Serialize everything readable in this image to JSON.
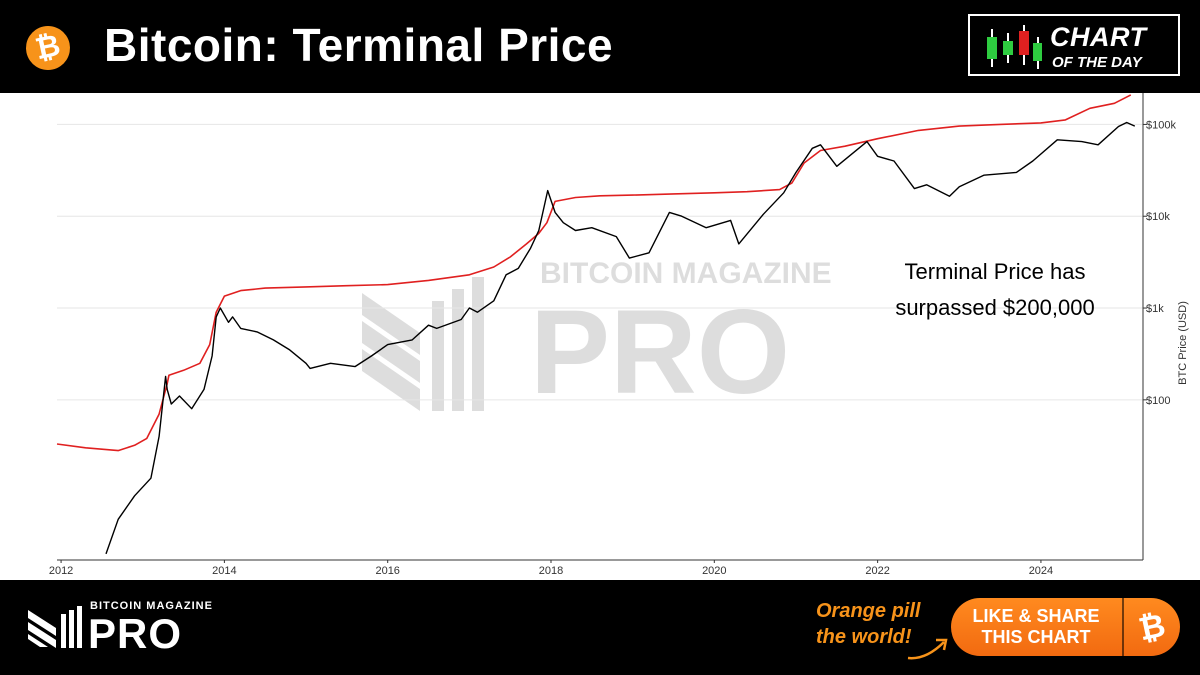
{
  "header": {
    "title": "Bitcoin: Terminal Price",
    "coin_icon": "bitcoin-coin-icon",
    "badge": {
      "line1": "CHART",
      "line2": "OF THE DAY",
      "icon": "candlestick-icon"
    }
  },
  "chart_data": {
    "type": "line",
    "title": "",
    "xlabel": "",
    "ylabel": "BTC Price (USD)",
    "yscale": "log",
    "xlim": [
      2011.95,
      2025.25
    ],
    "ylim": [
      1.8,
      220000
    ],
    "x_ticks": [
      {
        "value": 2012,
        "label": "2012"
      },
      {
        "value": 2014,
        "label": "2014"
      },
      {
        "value": 2016,
        "label": "2016"
      },
      {
        "value": 2018,
        "label": "2018"
      },
      {
        "value": 2020,
        "label": "2020"
      },
      {
        "value": 2022,
        "label": "2022"
      },
      {
        "value": 2024,
        "label": "2024"
      }
    ],
    "y_ticks": [
      {
        "value": 100,
        "label": "$100"
      },
      {
        "value": 1000,
        "label": "$1k"
      },
      {
        "value": 10000,
        "label": "$10k"
      },
      {
        "value": 100000,
        "label": "$100k"
      }
    ],
    "grid": true,
    "annotation": {
      "lines": [
        "Terminal Price has",
        "surpassed $200,000"
      ]
    },
    "watermark": {
      "line1": "BITCOIN MAGAZINE",
      "line2": "PRO"
    },
    "series": [
      {
        "color": "#e02020",
        "x": [
          2011.95,
          2012.3,
          2012.7,
          2012.9,
          2013.05,
          2013.2,
          2013.3,
          2013.32,
          2013.5,
          2013.7,
          2013.82,
          2013.9,
          2014.0,
          2014.2,
          2014.5,
          2015.0,
          2015.5,
          2016.0,
          2016.5,
          2017.0,
          2017.3,
          2017.5,
          2017.7,
          2017.85,
          2017.95,
          2018.05,
          2018.3,
          2018.6,
          2019.0,
          2019.5,
          2020.0,
          2020.4,
          2020.8,
          2020.95,
          2021.1,
          2021.3,
          2021.6,
          2022.0,
          2022.5,
          2023.0,
          2023.5,
          2024.0,
          2024.3,
          2024.6,
          2024.9,
          2025.1
        ],
        "y": [
          33,
          30,
          28,
          32,
          38,
          70,
          150,
          185,
          210,
          250,
          400,
          900,
          1350,
          1550,
          1650,
          1700,
          1750,
          1800,
          2000,
          2300,
          2800,
          3600,
          5000,
          6500,
          8500,
          14500,
          16000,
          16700,
          17000,
          17500,
          18000,
          18500,
          19500,
          23000,
          38000,
          52000,
          58000,
          70000,
          86000,
          96000,
          100000,
          104000,
          112000,
          150000,
          170000,
          210000
        ]
      },
      {
        "color": "#000000",
        "x": [
          2012.55,
          2012.7,
          2012.9,
          2013.1,
          2013.2,
          2013.28,
          2013.3,
          2013.35,
          2013.45,
          2013.6,
          2013.75,
          2013.85,
          2013.9,
          2013.95,
          2014.05,
          2014.1,
          2014.2,
          2014.4,
          2014.6,
          2014.8,
          2015.0,
          2015.05,
          2015.3,
          2015.6,
          2015.8,
          2016.0,
          2016.3,
          2016.5,
          2016.6,
          2016.9,
          2017.0,
          2017.1,
          2017.3,
          2017.45,
          2017.6,
          2017.75,
          2017.85,
          2017.96,
          2018.05,
          2018.15,
          2018.3,
          2018.5,
          2018.8,
          2018.96,
          2019.2,
          2019.45,
          2019.6,
          2019.9,
          2020.2,
          2020.3,
          2020.6,
          2020.85,
          2021.0,
          2021.2,
          2021.3,
          2021.5,
          2021.65,
          2021.87,
          2022.0,
          2022.2,
          2022.45,
          2022.6,
          2022.88,
          2023.0,
          2023.3,
          2023.7,
          2023.9,
          2024.2,
          2024.5,
          2024.7,
          2024.95,
          2025.05,
          2025.15
        ],
        "y": [
          2.1,
          5,
          9,
          14,
          40,
          180,
          130,
          90,
          110,
          80,
          130,
          300,
          800,
          1000,
          700,
          800,
          600,
          550,
          450,
          350,
          250,
          220,
          250,
          230,
          300,
          400,
          450,
          650,
          600,
          750,
          1000,
          900,
          1200,
          2300,
          2700,
          4500,
          7000,
          19000,
          11000,
          8500,
          7000,
          7500,
          6000,
          3500,
          4000,
          11000,
          10000,
          7500,
          9000,
          5000,
          10500,
          18000,
          30000,
          55000,
          60000,
          35000,
          45000,
          65000,
          45000,
          40000,
          20000,
          22000,
          16500,
          21000,
          28000,
          30000,
          40000,
          68000,
          65000,
          60000,
          95000,
          105000,
          96000
        ]
      }
    ]
  },
  "footer": {
    "brand_line1": "BITCOIN MAGAZINE",
    "brand_line2": "PRO",
    "tagline": [
      "Orange pill",
      "the world!"
    ],
    "share_button": [
      "LIKE & SHARE",
      "THIS CHART"
    ],
    "share_icon": "bitcoin-icon"
  }
}
